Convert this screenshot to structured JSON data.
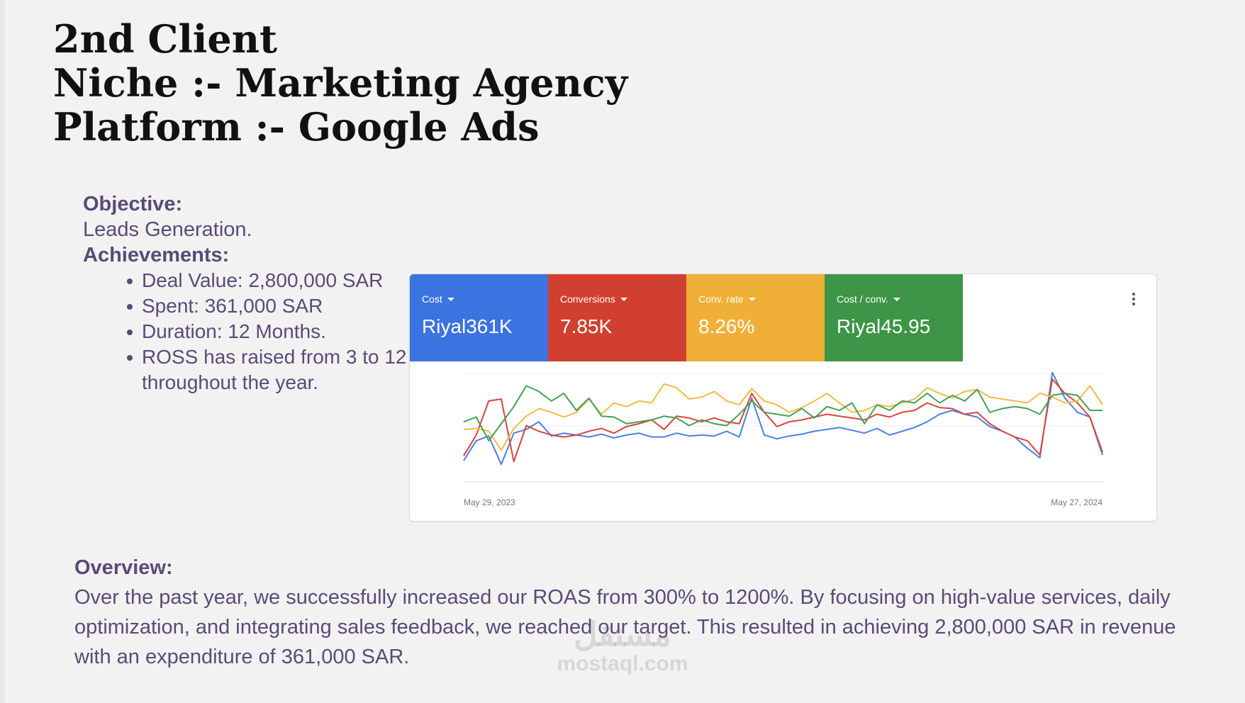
{
  "header": {
    "line1": "2nd Client",
    "line2": "Niche :- Marketing Agency",
    "line3": "Platform :- Google Ads"
  },
  "objective": {
    "label": "Objective:",
    "text": "Leads Generation.",
    "achievements_label": "Achievements:"
  },
  "achievements": [
    "Deal Value: 2,800,000 SAR",
    "Spent: 361,000 SAR",
    "Duration: 12 Months.",
    "ROSS has raised from 3 to 12 throughout the year."
  ],
  "metrics": [
    {
      "label": "Cost",
      "value": "Riyal361K",
      "color": "#3b73e0"
    },
    {
      "label": "Conversions",
      "value": "7.85K",
      "color": "#d13f30"
    },
    {
      "label": "Conv. rate",
      "value": "8.26%",
      "color": "#f0b037"
    },
    {
      "label": "Cost / conv.",
      "value": "Riyal45.95",
      "color": "#3e9547"
    }
  ],
  "chart_data": {
    "type": "line",
    "x_start_label": "May 29, 2023",
    "x_end_label": "May 27, 2024",
    "series": [
      {
        "name": "Cost",
        "color": "#4a7fe6",
        "values": [
          9,
          30,
          35,
          5,
          38,
          42,
          50,
          35,
          38,
          36,
          34,
          37,
          33,
          36,
          38,
          34,
          34,
          38,
          35,
          36,
          35,
          40,
          34,
          75,
          36,
          32,
          35,
          37,
          40,
          42,
          44,
          41,
          38,
          43,
          36,
          40,
          44,
          50,
          58,
          62,
          58,
          55,
          45,
          40,
          34,
          22,
          12,
          102,
          75,
          60,
          55,
          15
        ]
      },
      {
        "name": "Conversions",
        "color": "#d9453a",
        "values": [
          14,
          36,
          72,
          74,
          8,
          46,
          40,
          36,
          34,
          36,
          40,
          43,
          38,
          45,
          48,
          52,
          42,
          56,
          54,
          50,
          54,
          50,
          48,
          80,
          60,
          45,
          50,
          52,
          55,
          58,
          56,
          54,
          52,
          58,
          55,
          60,
          62,
          70,
          65,
          64,
          58,
          60,
          48,
          40,
          34,
          30,
          15,
          95,
          80,
          70,
          55,
          18
        ]
      },
      {
        "name": "Conv. rate",
        "color": "#f2bb46",
        "values": [
          42,
          43,
          40,
          20,
          43,
          56,
          64,
          60,
          55,
          60,
          74,
          58,
          70,
          66,
          72,
          70,
          90,
          86,
          74,
          76,
          82,
          72,
          68,
          85,
          72,
          68,
          60,
          65,
          72,
          80,
          70,
          60,
          62,
          68,
          66,
          70,
          74,
          86,
          80,
          75,
          82,
          84,
          76,
          74,
          72,
          70,
          80,
          76,
          70,
          72,
          88,
          68
        ]
      },
      {
        "name": "Cost / conv.",
        "color": "#46a054",
        "values": [
          50,
          55,
          30,
          48,
          66,
          88,
          82,
          72,
          80,
          62,
          75,
          56,
          55,
          48,
          50,
          52,
          56,
          54,
          46,
          52,
          48,
          46,
          58,
          72,
          60,
          58,
          56,
          64,
          54,
          66,
          62,
          70,
          48,
          68,
          62,
          72,
          70,
          80,
          70,
          78,
          72,
          84,
          60,
          64,
          66,
          64,
          58,
          78,
          80,
          78,
          62,
          62
        ]
      }
    ]
  },
  "overview": {
    "label": "Overview:",
    "text": "Over the past year, we successfully increased our ROAS from 300% to 1200%. By focusing on high-value services, daily optimization, and integrating sales feedback, we reached our target. This resulted in achieving 2,800,000 SAR in revenue with an expenditure of 361,000 SAR."
  },
  "watermark": {
    "mark": "مستقل",
    "site": "mostaql.com"
  }
}
